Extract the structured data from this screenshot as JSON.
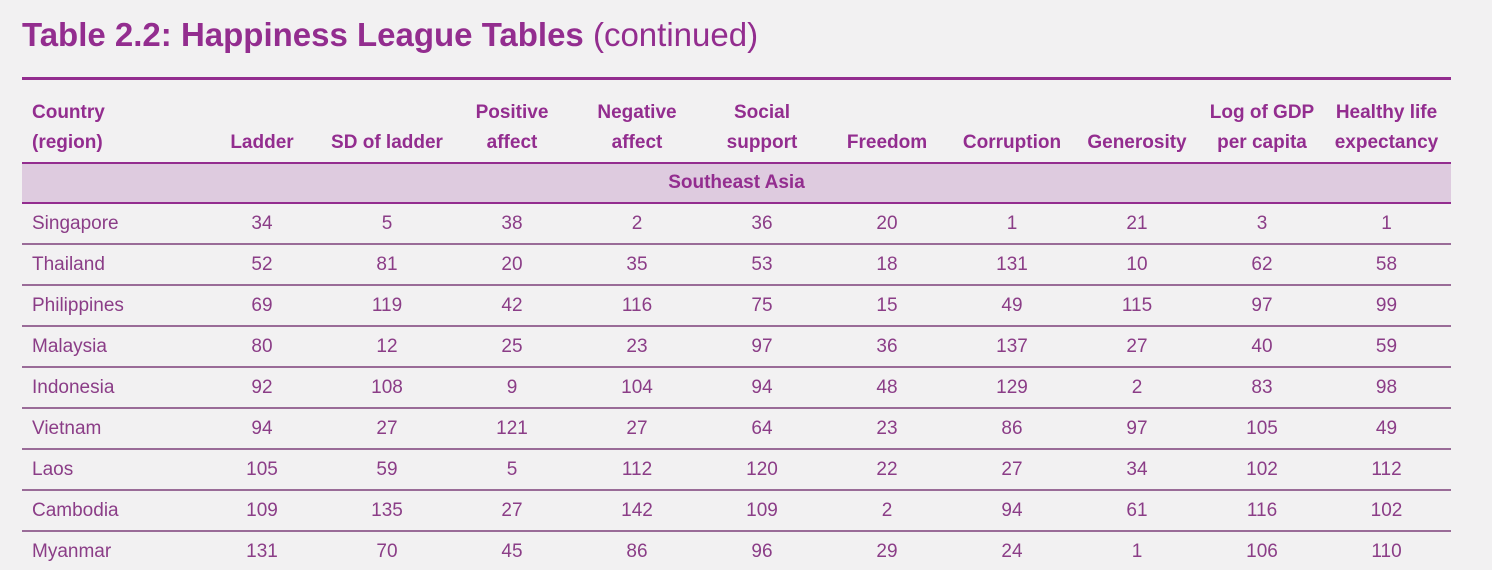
{
  "title": {
    "bold": "Table 2.2: Happiness League Tables",
    "light": "(continued)"
  },
  "table": {
    "headers": [
      [
        "Country",
        "(region)"
      ],
      [
        "Ladder"
      ],
      [
        "SD of ladder"
      ],
      [
        "Positive",
        "affect"
      ],
      [
        "Negative",
        "affect"
      ],
      [
        "Social",
        "support"
      ],
      [
        "Freedom"
      ],
      [
        "Corruption"
      ],
      [
        "Generosity"
      ],
      [
        "Log of GDP",
        "per capita"
      ],
      [
        "Healthy life",
        "expectancy"
      ]
    ],
    "region": "Southeast Asia",
    "rows": [
      [
        "Singapore",
        "34",
        "5",
        "38",
        "2",
        "36",
        "20",
        "1",
        "21",
        "3",
        "1"
      ],
      [
        "Thailand",
        "52",
        "81",
        "20",
        "35",
        "53",
        "18",
        "131",
        "10",
        "62",
        "58"
      ],
      [
        "Philippines",
        "69",
        "119",
        "42",
        "116",
        "75",
        "15",
        "49",
        "115",
        "97",
        "99"
      ],
      [
        "Malaysia",
        "80",
        "12",
        "25",
        "23",
        "97",
        "36",
        "137",
        "27",
        "40",
        "59"
      ],
      [
        "Indonesia",
        "92",
        "108",
        "9",
        "104",
        "94",
        "48",
        "129",
        "2",
        "83",
        "98"
      ],
      [
        "Vietnam",
        "94",
        "27",
        "121",
        "27",
        "64",
        "23",
        "86",
        "97",
        "105",
        "49"
      ],
      [
        "Laos",
        "105",
        "59",
        "5",
        "112",
        "120",
        "22",
        "27",
        "34",
        "102",
        "112"
      ],
      [
        "Cambodia",
        "109",
        "135",
        "27",
        "142",
        "109",
        "2",
        "94",
        "61",
        "116",
        "102"
      ],
      [
        "Myanmar",
        "131",
        "70",
        "45",
        "86",
        "96",
        "29",
        "24",
        "1",
        "106",
        "110"
      ]
    ]
  },
  "colors": {
    "accent": "#932d8f",
    "region_band": "#decbdf",
    "background": "#f2f1f2"
  }
}
